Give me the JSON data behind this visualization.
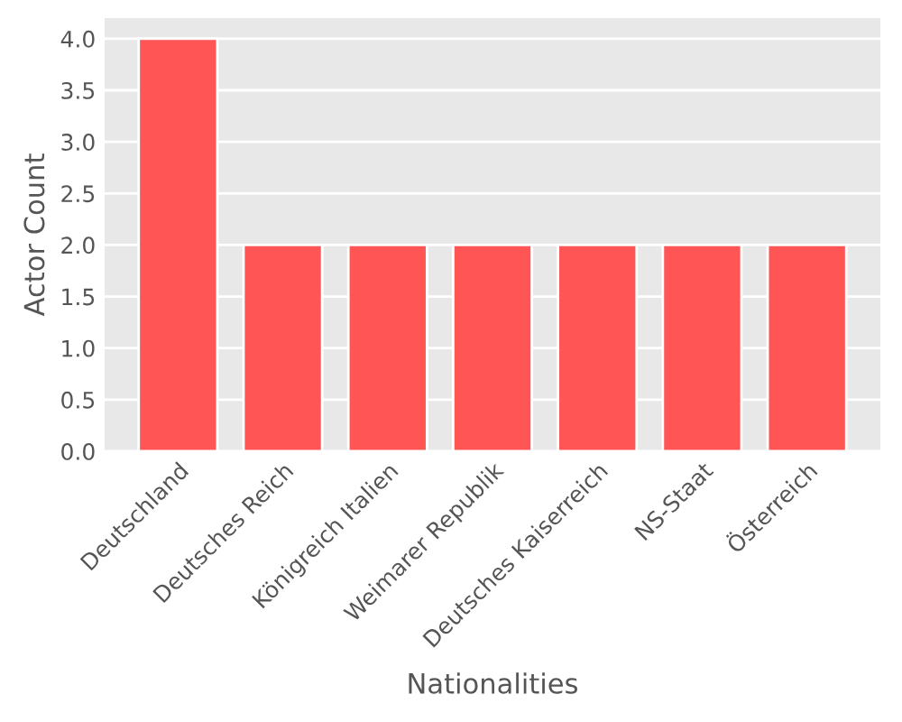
{
  "chart_data": {
    "type": "bar",
    "xlabel": "Nationalities",
    "ylabel": "Actor Count",
    "categories": [
      "Deutschland",
      "Deutsches Reich",
      "Königreich Italien",
      "Weimarer Republik",
      "Deutsches Kaiserreich",
      "NS-Staat",
      "Österreich"
    ],
    "values": [
      4,
      2,
      2,
      2,
      2,
      2,
      2
    ],
    "color": "#ff5555",
    "ylim": [
      0,
      4.2
    ],
    "yticks": [
      {
        "value": 0,
        "label": "0.0"
      },
      {
        "value": 0.5,
        "label": "0.5"
      },
      {
        "value": 1,
        "label": "1.0"
      },
      {
        "value": 1.5,
        "label": "1.5"
      },
      {
        "value": 2,
        "label": "2.0"
      },
      {
        "value": 2.5,
        "label": "2.5"
      },
      {
        "value": 3,
        "label": "3.0"
      },
      {
        "value": 3.5,
        "label": "3.5"
      },
      {
        "value": 4,
        "label": "4.0"
      }
    ],
    "grid": "y"
  }
}
